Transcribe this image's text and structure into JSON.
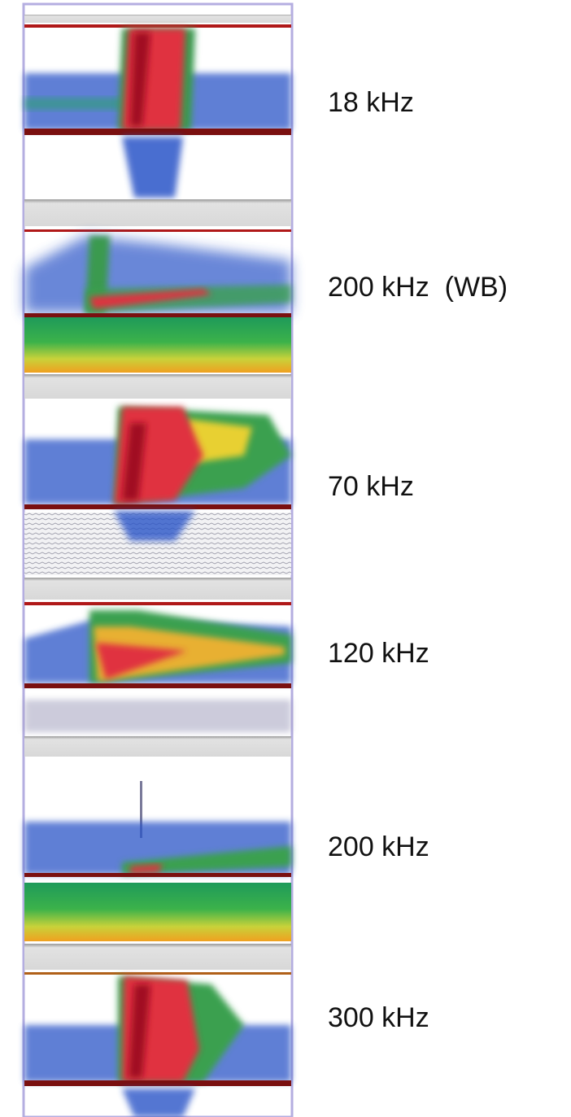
{
  "panels": [
    {
      "label": "18 kHz"
    },
    {
      "label": "200 kHz  (WB)"
    },
    {
      "label": "70 kHz"
    },
    {
      "label": "120 kHz"
    },
    {
      "label": "200 kHz"
    },
    {
      "label": "300 kHz"
    }
  ]
}
